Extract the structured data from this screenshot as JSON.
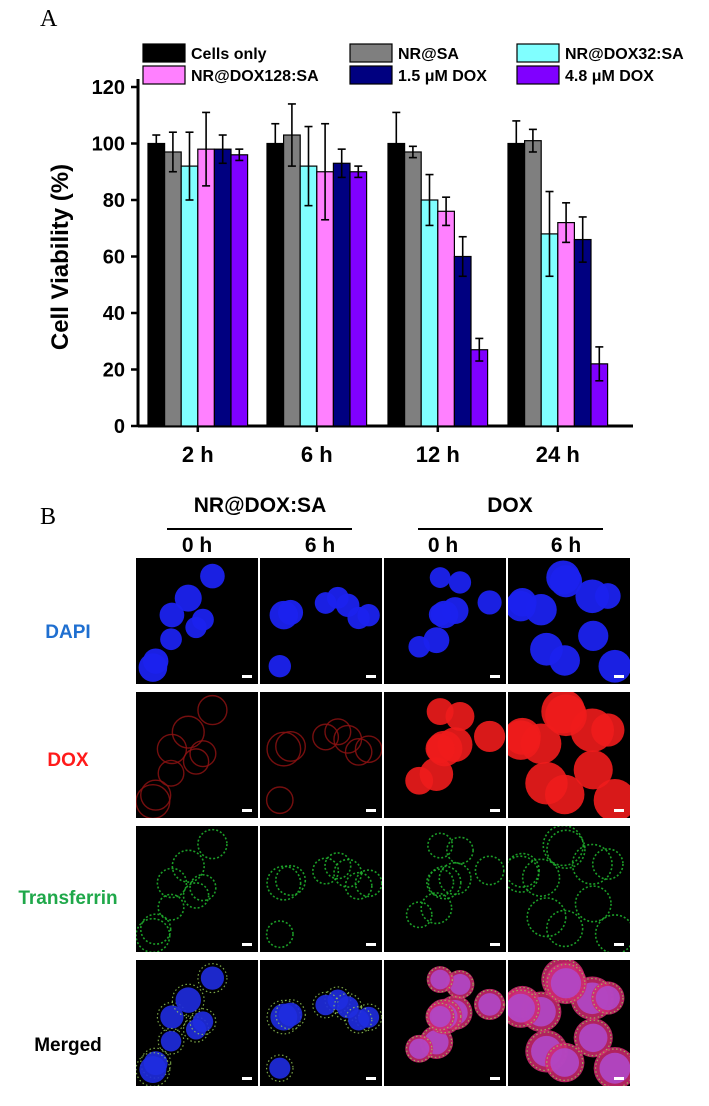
{
  "figure": {
    "panel_a_letter": "A",
    "panel_b_letter": "B"
  },
  "chart_data": {
    "type": "bar",
    "categories": [
      "2 h",
      "6 h",
      "12 h",
      "24 h"
    ],
    "ylabel": "Cell Viability (%)",
    "xlabel": "",
    "ylim": [
      0,
      120
    ],
    "yticks": [
      0,
      20,
      40,
      60,
      80,
      100,
      120
    ],
    "legend_placement": "top",
    "series": [
      {
        "name": "Cells only",
        "color": "#000000",
        "values": [
          100,
          100,
          100,
          100
        ],
        "errors": [
          3,
          7,
          11,
          8
        ]
      },
      {
        "name": "NR@SA",
        "color": "#7f7f7f",
        "values": [
          97,
          103,
          97,
          101
        ],
        "errors": [
          7,
          11,
          2,
          4
        ]
      },
      {
        "name": "NR@DOX32:SA",
        "color": "#80ffff",
        "values": [
          92,
          92,
          80,
          68
        ],
        "errors": [
          12,
          14,
          9,
          15
        ]
      },
      {
        "name": "NR@DOX128:SA",
        "color": "#ff80ff",
        "values": [
          98,
          90,
          76,
          72
        ],
        "errors": [
          13,
          17,
          5,
          7
        ]
      },
      {
        "name": "1.5 μM DOX",
        "color": "#000080",
        "values": [
          98,
          93,
          60,
          66
        ],
        "errors": [
          5,
          5,
          7,
          8
        ]
      },
      {
        "name": "4.8 μM DOX",
        "color": "#8000ff",
        "values": [
          96,
          90,
          27,
          22
        ],
        "errors": [
          2,
          2,
          4,
          6
        ]
      }
    ]
  },
  "microscopy": {
    "groups": [
      {
        "title": "NR@DOX:SA",
        "timepoints": [
          "0 h",
          "6 h"
        ]
      },
      {
        "title": "DOX",
        "timepoints": [
          "0 h",
          "6 h"
        ]
      }
    ],
    "rows": [
      {
        "label": "DAPI",
        "color": "#1f6fd0",
        "channel": "blue nuclei"
      },
      {
        "label": "DOX",
        "color": "#ff1a1a",
        "channel": "red doxorubicin fluorescence"
      },
      {
        "label": "Transferrin",
        "color": "#1fa84a",
        "channel": "green membrane punctae"
      },
      {
        "label": "Merged",
        "color": "#000000",
        "channel": "overlay"
      }
    ]
  }
}
